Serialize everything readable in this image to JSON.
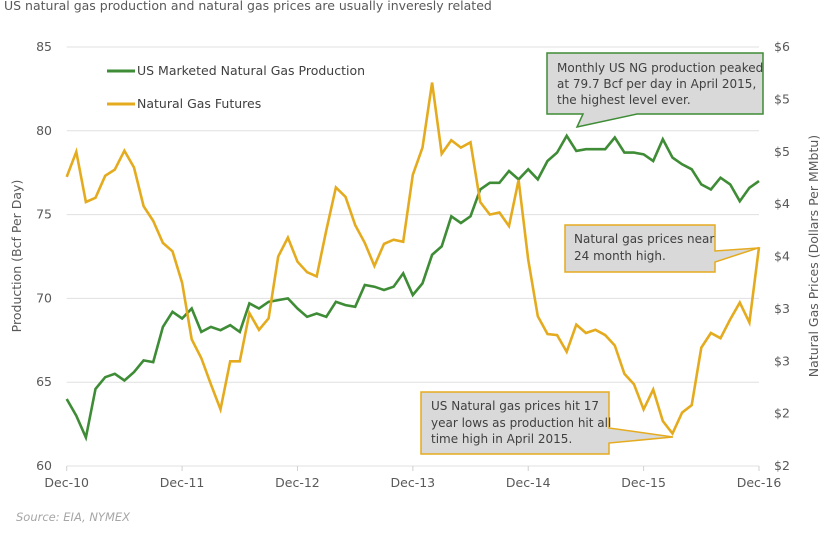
{
  "title": "US natural gas production and  natural gas prices are usually inveresly related",
  "source": "Source: EIA, NYMEX",
  "chart_data": {
    "type": "line",
    "title": "US natural gas production and  natural gas prices are usually inveresly related",
    "x_start": "Dec-10",
    "x_frequency": "monthly",
    "x_tick_labels": [
      "Dec-10",
      "Dec-11",
      "Dec-12",
      "Dec-13",
      "Dec-14",
      "Dec-15",
      "Dec-16"
    ],
    "ylabel": "Production (Bcf Per Day)",
    "y2label": "Natural Gas Prices (Dollars Per MMbtu)",
    "ylim": [
      60,
      85
    ],
    "y_tick_labels": [
      "60",
      "65",
      "70",
      "75",
      "80",
      "85"
    ],
    "y2lim": [
      2,
      6
    ],
    "y2_tick_labels": [
      "$2",
      "$2",
      "$3",
      "$3",
      "$4",
      "$4",
      "$5",
      "$5",
      "$6"
    ],
    "grid": true,
    "legend_position": "top-left",
    "colors": {
      "production": "#3e8c36",
      "futures": "#e5ab1f"
    },
    "series": [
      {
        "name": "US Marketed Natural Gas Production",
        "axis": "left",
        "values": [
          64.0,
          63.0,
          61.7,
          64.6,
          65.3,
          65.5,
          65.1,
          65.6,
          66.3,
          66.2,
          68.3,
          69.2,
          68.8,
          69.4,
          68.0,
          68.3,
          68.1,
          68.4,
          68.0,
          69.7,
          69.4,
          69.8,
          69.9,
          70.0,
          69.4,
          68.9,
          69.1,
          68.9,
          69.8,
          69.6,
          69.5,
          70.8,
          70.7,
          70.5,
          70.7,
          71.5,
          70.2,
          70.9,
          72.6,
          73.1,
          74.9,
          74.5,
          74.9,
          76.5,
          76.9,
          76.9,
          77.6,
          77.1,
          77.7,
          77.1,
          78.2,
          78.7,
          79.7,
          78.8,
          78.9,
          78.9,
          78.9,
          79.6,
          78.7,
          78.7,
          78.6,
          78.2,
          79.5,
          78.4,
          78.0,
          77.7,
          76.8,
          76.5,
          77.2,
          76.8,
          75.8,
          76.6,
          77.0
        ]
      },
      {
        "name": "Natural Gas Futures",
        "axis": "right",
        "values": [
          4.76,
          5.0,
          4.52,
          4.56,
          4.77,
          4.83,
          5.01,
          4.85,
          4.48,
          4.34,
          4.13,
          4.05,
          3.75,
          3.21,
          3.03,
          2.78,
          2.54,
          3.0,
          3.0,
          3.46,
          3.3,
          3.41,
          4.0,
          4.18,
          3.95,
          3.85,
          3.81,
          4.25,
          4.66,
          4.57,
          4.3,
          4.13,
          3.91,
          4.12,
          4.16,
          4.14,
          4.78,
          5.04,
          5.66,
          4.98,
          5.11,
          5.04,
          5.09,
          4.52,
          4.4,
          4.42,
          4.29,
          4.73,
          3.97,
          3.43,
          3.26,
          3.25,
          3.09,
          3.35,
          3.27,
          3.3,
          3.25,
          3.15,
          2.88,
          2.78,
          2.54,
          2.73,
          2.43,
          2.31,
          2.51,
          2.58,
          3.13,
          3.27,
          3.22,
          3.4,
          3.56,
          3.37,
          4.09
        ]
      }
    ],
    "annotations": [
      {
        "lines": [
          "Monthly US NG production peaked",
          "at 79.7 Bcf per day in April 2015,",
          "the highest level ever."
        ],
        "color": "#3e8c36"
      },
      {
        "lines": [
          "Natural gas prices near",
          "24 month high."
        ],
        "color": "#e5ab1f"
      },
      {
        "lines": [
          "US Natural gas prices hit 17",
          "year lows as production hit all",
          "time high in April 2015."
        ],
        "color": "#e5ab1f"
      }
    ]
  }
}
